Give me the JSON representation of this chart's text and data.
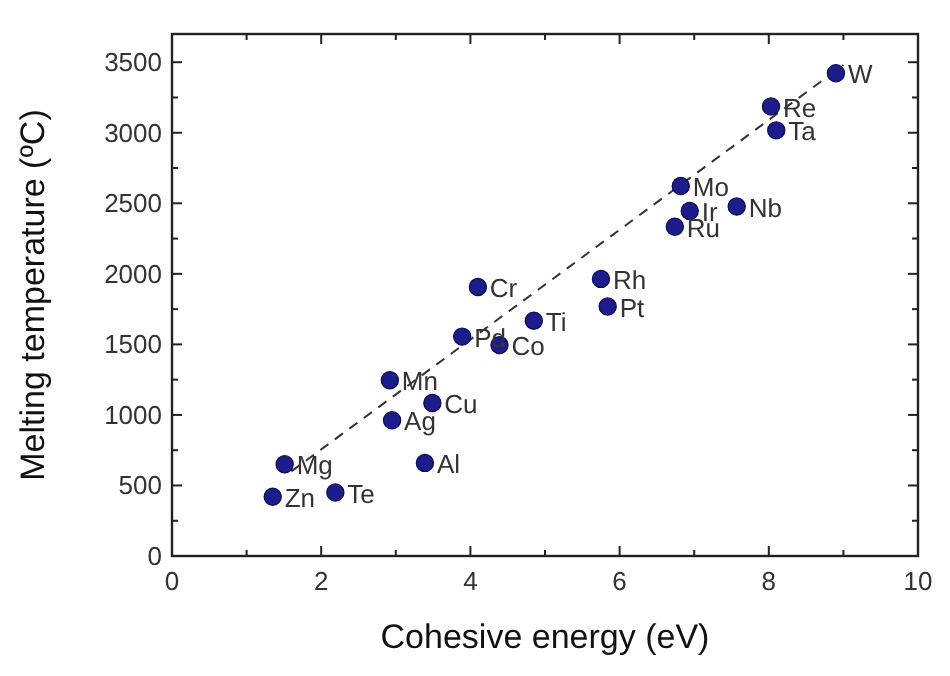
{
  "chart_data": {
    "type": "scatter",
    "xlabel": "Cohesive energy (eV)",
    "ylabel": "Melting temperature (ºC)",
    "xlim": [
      0,
      10
    ],
    "ylim": [
      0,
      3700
    ],
    "xticks": [
      0,
      {
        "value": 1,
        "label": null
      },
      2,
      {
        "value": 3,
        "label": null
      },
      4,
      {
        "value": 5,
        "label": null
      },
      6,
      {
        "value": 7,
        "label": null
      },
      8,
      {
        "value": 9,
        "label": null
      },
      10
    ],
    "yticks": [
      0,
      {
        "value": 250,
        "label": null
      },
      500,
      {
        "value": 750,
        "label": null
      },
      1000,
      {
        "value": 1250,
        "label": null
      },
      1500,
      {
        "value": 1750,
        "label": null
      },
      2000,
      {
        "value": 2250,
        "label": null
      },
      2500,
      {
        "value": 2750,
        "label": null
      },
      3000,
      {
        "value": 3250,
        "label": null
      },
      3500
    ],
    "grid": false,
    "series": [
      {
        "type": "line",
        "color": "#333333",
        "line_style": "dashed",
        "marker": "none",
        "x": [
          1.6,
          9.0
        ],
        "values": [
          600,
          3480
        ]
      },
      {
        "color": "#1c1c8a",
        "marker": "circle",
        "x": [
          8.9,
          8.03,
          8.1,
          6.82,
          6.94,
          7.57,
          6.74,
          5.75,
          5.84,
          4.85,
          4.39,
          3.89,
          4.1,
          2.92,
          3.49,
          2.95,
          3.39,
          1.51,
          1.35,
          2.19
        ],
        "values": [
          3422,
          3186,
          3017,
          2623,
          2446,
          2477,
          2334,
          1964,
          1768,
          1668,
          1495,
          1555,
          1907,
          1246,
          1085,
          962,
          660,
          650,
          420,
          450
        ]
      }
    ],
    "annotations": [
      {
        "text": "W",
        "x": 8.9,
        "y": 3422
      },
      {
        "text": "Re",
        "x": 8.03,
        "y": 3186
      },
      {
        "text": "Ta",
        "x": 8.1,
        "y": 3017
      },
      {
        "text": "Mo",
        "x": 6.82,
        "y": 2623
      },
      {
        "text": "Ir",
        "x": 6.94,
        "y": 2446
      },
      {
        "text": "Nb",
        "x": 7.57,
        "y": 2477
      },
      {
        "text": "Ru",
        "x": 6.74,
        "y": 2334
      },
      {
        "text": "Rh",
        "x": 5.75,
        "y": 1964
      },
      {
        "text": "Pt",
        "x": 5.84,
        "y": 1768
      },
      {
        "text": "Ti",
        "x": 4.85,
        "y": 1668
      },
      {
        "text": "Co",
        "x": 4.39,
        "y": 1495
      },
      {
        "text": "Pd",
        "x": 3.89,
        "y": 1555
      },
      {
        "text": "Cr",
        "x": 4.1,
        "y": 1907
      },
      {
        "text": "Mn",
        "x": 2.92,
        "y": 1246
      },
      {
        "text": "Cu",
        "x": 3.49,
        "y": 1085
      },
      {
        "text": "Ag",
        "x": 2.95,
        "y": 962
      },
      {
        "text": "Al",
        "x": 3.39,
        "y": 660
      },
      {
        "text": "Mg",
        "x": 1.51,
        "y": 650
      },
      {
        "text": "Zn",
        "x": 1.35,
        "y": 420
      },
      {
        "text": "Te",
        "x": 2.19,
        "y": 450
      }
    ]
  }
}
